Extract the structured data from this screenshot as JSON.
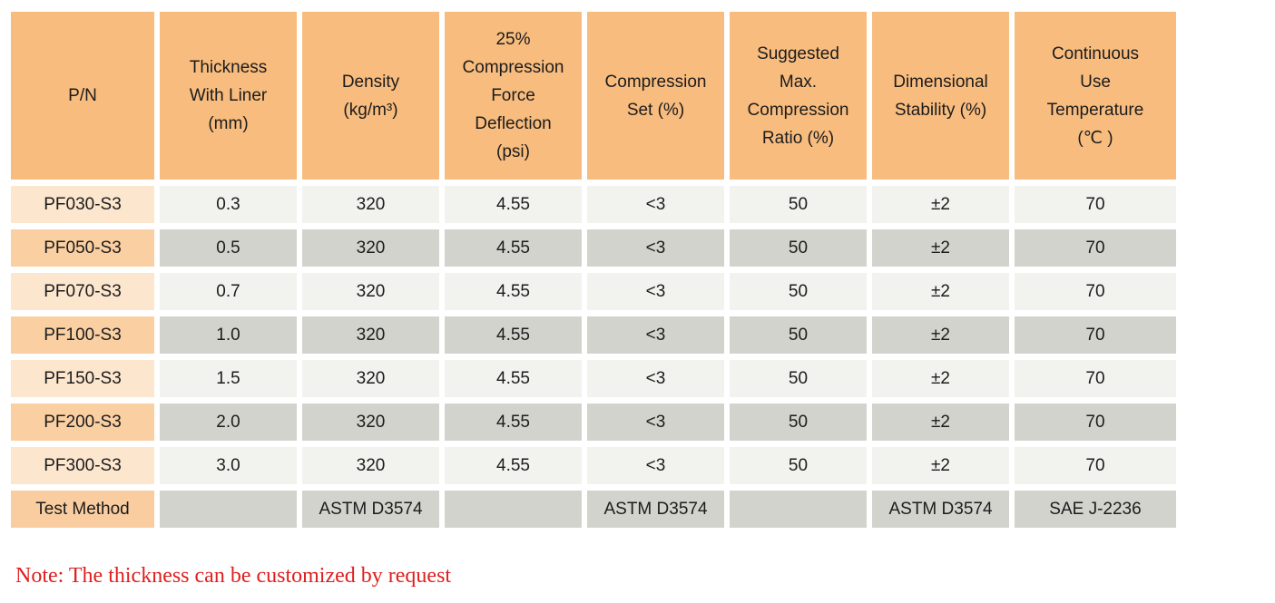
{
  "colors": {
    "header_bg": "#F8BC7E",
    "pn_light_bg": "#FCE6CE",
    "pn_dark_bg": "#FACFA2",
    "cell_light_bg": "#F2F2EE",
    "cell_dark_bg": "#D3D3CD",
    "test_label_bg": "#F9CDA0",
    "note_color": "#DF1E1E",
    "text_color": "#1C1C1C"
  },
  "table": {
    "headers": [
      "P/N",
      "Thickness\nWith Liner\n(mm)",
      "Density\n(kg/m³)",
      "25%\nCompression\nForce\nDeflection\n(psi)",
      "Compression\nSet (%)",
      "Suggested\nMax.\nCompression\nRatio (%)",
      "Dimensional\nStability (%)",
      "Continuous\nUse\nTemperature\n(℃ )"
    ],
    "rows": [
      {
        "pn": "PF030-S3",
        "values": [
          "0.3",
          "320",
          "4.55",
          "<3",
          "50",
          "±2",
          "70"
        ]
      },
      {
        "pn": "PF050-S3",
        "values": [
          "0.5",
          "320",
          "4.55",
          "<3",
          "50",
          "±2",
          "70"
        ]
      },
      {
        "pn": "PF070-S3",
        "values": [
          "0.7",
          "320",
          "4.55",
          "<3",
          "50",
          "±2",
          "70"
        ]
      },
      {
        "pn": "PF100-S3",
        "values": [
          "1.0",
          "320",
          "4.55",
          "<3",
          "50",
          "±2",
          "70"
        ]
      },
      {
        "pn": "PF150-S3",
        "values": [
          "1.5",
          "320",
          "4.55",
          "<3",
          "50",
          "±2",
          "70"
        ]
      },
      {
        "pn": "PF200-S3",
        "values": [
          "2.0",
          "320",
          "4.55",
          "<3",
          "50",
          "±2",
          "70"
        ]
      },
      {
        "pn": "PF300-S3",
        "values": [
          "3.0",
          "320",
          "4.55",
          "<3",
          "50",
          "±2",
          "70"
        ]
      }
    ],
    "test_method": {
      "label": "Test Method",
      "values": [
        "",
        "ASTM D3574",
        "",
        "ASTM D3574",
        "",
        "ASTM D3574",
        "SAE J-2236"
      ]
    }
  },
  "note": "Note: The thickness can be customized by request"
}
